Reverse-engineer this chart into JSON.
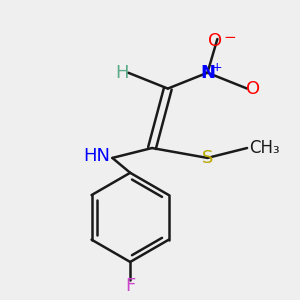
{
  "bg_color": "#efefef",
  "bond_color": "#1a1a1a",
  "bond_width": 1.8,
  "figsize": [
    3.0,
    3.0
  ],
  "dpi": 100,
  "colors": {
    "H": "#5aaa88",
    "N": "#0000ff",
    "O": "#ff0000",
    "S": "#b8a800",
    "F": "#cc44cc",
    "C": "#1a1a1a",
    "NH": "#0000ff"
  }
}
